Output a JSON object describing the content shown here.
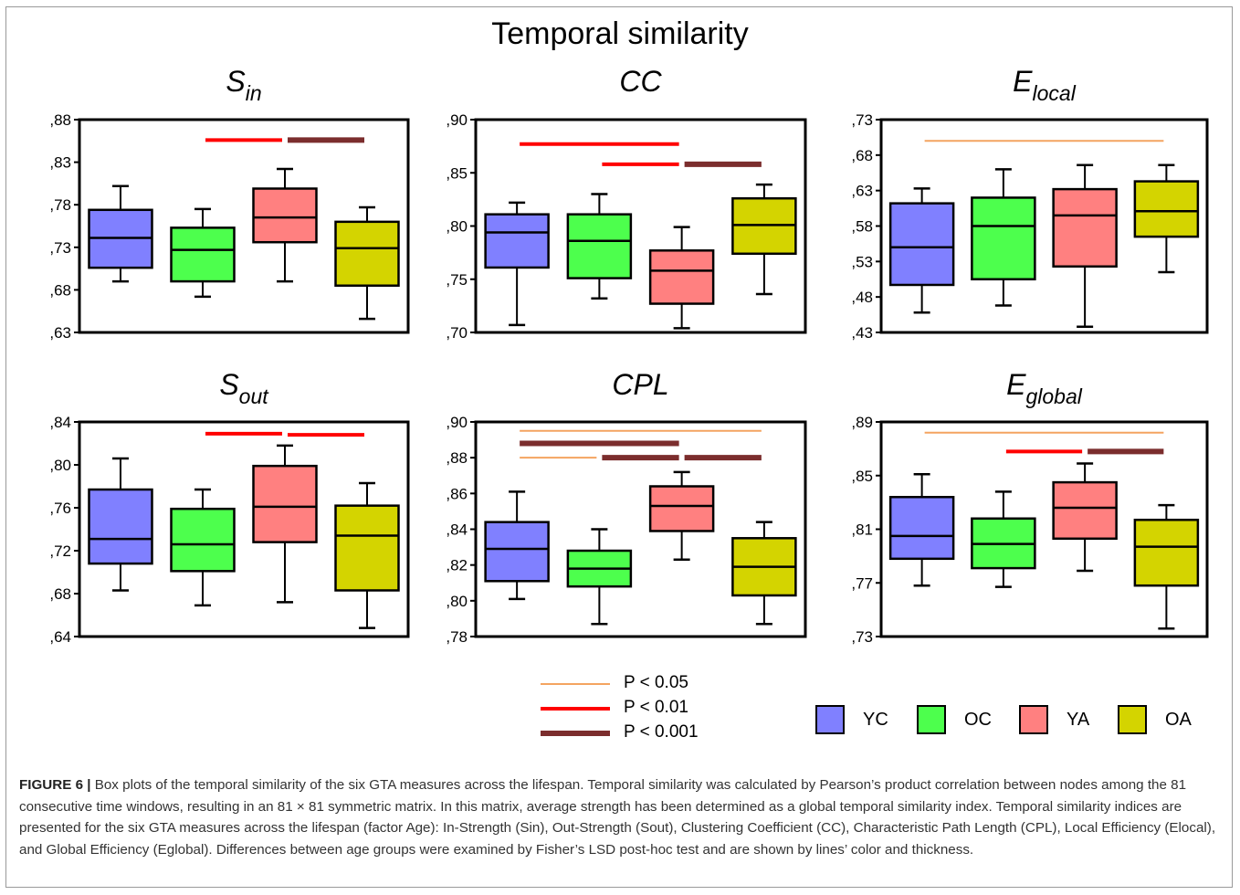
{
  "main_title": "Temporal similarity",
  "groups": [
    {
      "name": "YC",
      "color": "#8080ff"
    },
    {
      "name": "OC",
      "color": "#4dff4d"
    },
    {
      "name": "YA",
      "color": "#ff8080"
    },
    {
      "name": "OA",
      "color": "#d4d400"
    }
  ],
  "p_legend": [
    {
      "label": "P < 0.05",
      "color": "#f4a460",
      "stroke": 2
    },
    {
      "label": "P < 0.01",
      "color": "#ff0000",
      "stroke": 4
    },
    {
      "label": "P < 0.001",
      "color": "#7b2d2d",
      "stroke": 6
    }
  ],
  "chart_data": [
    {
      "type": "box",
      "key": "sin",
      "title_base": "S",
      "title_sub": "in",
      "ylim": [
        0.63,
        0.88
      ],
      "yticks": [
        0.63,
        0.68,
        0.73,
        0.78,
        0.83,
        0.88
      ],
      "ytick_labels": [
        ",63",
        ",68",
        ",73",
        ",78",
        ",83",
        ",88"
      ],
      "categories": [
        "YC",
        "OC",
        "YA",
        "OA"
      ],
      "boxes": [
        {
          "whisker_low": 0.69,
          "q1": 0.706,
          "median": 0.741,
          "q3": 0.774,
          "whisker_high": 0.802
        },
        {
          "whisker_low": 0.672,
          "q1": 0.69,
          "median": 0.727,
          "q3": 0.753,
          "whisker_high": 0.775
        },
        {
          "whisker_low": 0.69,
          "q1": 0.736,
          "median": 0.765,
          "q3": 0.799,
          "whisker_high": 0.822
        },
        {
          "whisker_low": 0.646,
          "q1": 0.685,
          "median": 0.729,
          "q3": 0.76,
          "whisker_high": 0.777
        }
      ],
      "significance": [
        {
          "from": "OC",
          "to": "YA",
          "level": "p001",
          "y": 0.856
        },
        {
          "from": "YA",
          "to": "OA",
          "level": "p0001",
          "y": 0.856
        }
      ]
    },
    {
      "type": "box",
      "key": "cc",
      "title_base": "CC",
      "title_sub": "",
      "ylim": [
        0.7,
        0.9
      ],
      "yticks": [
        0.7,
        0.75,
        0.8,
        0.85,
        0.9
      ],
      "ytick_labels": [
        ",70",
        ",75",
        ",80",
        ",85",
        ",90"
      ],
      "categories": [
        "YC",
        "OC",
        "YA",
        "OA"
      ],
      "boxes": [
        {
          "whisker_low": 0.707,
          "q1": 0.761,
          "median": 0.794,
          "q3": 0.811,
          "whisker_high": 0.822
        },
        {
          "whisker_low": 0.732,
          "q1": 0.751,
          "median": 0.786,
          "q3": 0.811,
          "whisker_high": 0.83
        },
        {
          "whisker_low": 0.704,
          "q1": 0.727,
          "median": 0.758,
          "q3": 0.777,
          "whisker_high": 0.799
        },
        {
          "whisker_low": 0.736,
          "q1": 0.774,
          "median": 0.801,
          "q3": 0.826,
          "whisker_high": 0.839
        }
      ],
      "significance": [
        {
          "from": "YC",
          "to": "YA",
          "level": "p001",
          "y": 0.877
        },
        {
          "from": "OC",
          "to": "YA",
          "level": "p001",
          "y": 0.858
        },
        {
          "from": "YA",
          "to": "OA",
          "level": "p0001",
          "y": 0.858
        }
      ]
    },
    {
      "type": "box",
      "key": "elocal",
      "title_base": "E",
      "title_sub": "local",
      "ylim": [
        0.43,
        0.73
      ],
      "yticks": [
        0.43,
        0.48,
        0.53,
        0.58,
        0.63,
        0.68,
        0.73
      ],
      "ytick_labels": [
        ",43",
        ",48",
        ",53",
        ",58",
        ",63",
        ",68",
        ",73"
      ],
      "categories": [
        "YC",
        "OC",
        "YA",
        "OA"
      ],
      "boxes": [
        {
          "whisker_low": 0.458,
          "q1": 0.497,
          "median": 0.55,
          "q3": 0.612,
          "whisker_high": 0.633
        },
        {
          "whisker_low": 0.468,
          "q1": 0.505,
          "median": 0.58,
          "q3": 0.62,
          "whisker_high": 0.66
        },
        {
          "whisker_low": 0.438,
          "q1": 0.523,
          "median": 0.595,
          "q3": 0.632,
          "whisker_high": 0.666
        },
        {
          "whisker_low": 0.515,
          "q1": 0.565,
          "median": 0.601,
          "q3": 0.643,
          "whisker_high": 0.666
        }
      ],
      "significance": [
        {
          "from": "YC",
          "to": "OA",
          "level": "p05",
          "y": 0.7
        }
      ]
    },
    {
      "type": "box",
      "key": "sout",
      "title_base": "S",
      "title_sub": "out",
      "ylim": [
        0.64,
        0.84
      ],
      "yticks": [
        0.64,
        0.68,
        0.72,
        0.76,
        0.8,
        0.84
      ],
      "ytick_labels": [
        ",64",
        ",68",
        ",72",
        ",76",
        ",80",
        ",84"
      ],
      "categories": [
        "YC",
        "OC",
        "YA",
        "OA"
      ],
      "boxes": [
        {
          "whisker_low": 0.683,
          "q1": 0.708,
          "median": 0.731,
          "q3": 0.777,
          "whisker_high": 0.806
        },
        {
          "whisker_low": 0.669,
          "q1": 0.701,
          "median": 0.726,
          "q3": 0.759,
          "whisker_high": 0.777
        },
        {
          "whisker_low": 0.672,
          "q1": 0.728,
          "median": 0.761,
          "q3": 0.799,
          "whisker_high": 0.818
        },
        {
          "whisker_low": 0.648,
          "q1": 0.683,
          "median": 0.734,
          "q3": 0.762,
          "whisker_high": 0.783
        }
      ],
      "significance": [
        {
          "from": "OC",
          "to": "YA",
          "level": "p001",
          "y": 0.829
        },
        {
          "from": "YA",
          "to": "OA",
          "level": "p001",
          "y": 0.828
        }
      ]
    },
    {
      "type": "box",
      "key": "cpl",
      "title_base": "CPL",
      "title_sub": "",
      "ylim": [
        0.78,
        0.9
      ],
      "yticks": [
        0.78,
        0.8,
        0.82,
        0.84,
        0.86,
        0.88,
        0.9
      ],
      "ytick_labels": [
        ",78",
        ",80",
        ",82",
        ",84",
        ",86",
        ",88",
        ",90"
      ],
      "categories": [
        "YC",
        "OC",
        "YA",
        "OA"
      ],
      "boxes": [
        {
          "whisker_low": 0.801,
          "q1": 0.811,
          "median": 0.829,
          "q3": 0.844,
          "whisker_high": 0.861
        },
        {
          "whisker_low": 0.787,
          "q1": 0.808,
          "median": 0.818,
          "q3": 0.828,
          "whisker_high": 0.84
        },
        {
          "whisker_low": 0.823,
          "q1": 0.839,
          "median": 0.853,
          "q3": 0.864,
          "whisker_high": 0.872
        },
        {
          "whisker_low": 0.787,
          "q1": 0.803,
          "median": 0.819,
          "q3": 0.835,
          "whisker_high": 0.844
        }
      ],
      "significance": [
        {
          "from": "YC",
          "to": "OA",
          "level": "p05",
          "y": 0.895
        },
        {
          "from": "YC",
          "to": "YA",
          "level": "p0001",
          "y": 0.888
        },
        {
          "from": "YC",
          "to": "OC",
          "level": "p05",
          "y": 0.88
        },
        {
          "from": "OC",
          "to": "YA",
          "level": "p0001",
          "y": 0.88
        },
        {
          "from": "YA",
          "to": "OA",
          "level": "p0001",
          "y": 0.88
        }
      ]
    },
    {
      "type": "box",
      "key": "eglobal",
      "title_base": "E",
      "title_sub": "global",
      "ylim": [
        0.73,
        0.89
      ],
      "yticks": [
        0.73,
        0.77,
        0.81,
        0.85,
        0.89
      ],
      "ytick_labels": [
        ",73",
        ",77",
        ",81",
        ",85",
        ",89"
      ],
      "categories": [
        "YC",
        "OC",
        "YA",
        "OA"
      ],
      "boxes": [
        {
          "whisker_low": 0.768,
          "q1": 0.788,
          "median": 0.805,
          "q3": 0.834,
          "whisker_high": 0.851
        },
        {
          "whisker_low": 0.767,
          "q1": 0.781,
          "median": 0.799,
          "q3": 0.818,
          "whisker_high": 0.838
        },
        {
          "whisker_low": 0.779,
          "q1": 0.803,
          "median": 0.826,
          "q3": 0.845,
          "whisker_high": 0.859
        },
        {
          "whisker_low": 0.736,
          "q1": 0.768,
          "median": 0.797,
          "q3": 0.817,
          "whisker_high": 0.828
        }
      ],
      "significance": [
        {
          "from": "YC",
          "to": "OA",
          "level": "p05",
          "y": 0.882
        },
        {
          "from": "OC",
          "to": "YA",
          "level": "p001",
          "y": 0.868
        },
        {
          "from": "YA",
          "to": "OA",
          "level": "p0001",
          "y": 0.868
        }
      ]
    }
  ],
  "caption": {
    "lead": "FIGURE 6 |",
    "text": " Box plots of the temporal similarity of the six GTA measures across the lifespan. Temporal similarity was calculated by Pearson’s product correlation between nodes among the 81 consecutive time windows, resulting in an 81 × 81 symmetric matrix. In this matrix, average strength has been determined as a global temporal similarity index. Temporal similarity indices are presented for the six GTA measures across the lifespan (factor Age): In-Strength (Sin), Out-Strength (Sout), Clustering Coefficient (CC), Characteristic Path Length (CPL), Local Efficiency (Elocal), and Global Efficiency (Eglobal). Differences between age groups were examined by Fisher’s LSD post-hoc test and are shown by lines’ color and thickness."
  }
}
